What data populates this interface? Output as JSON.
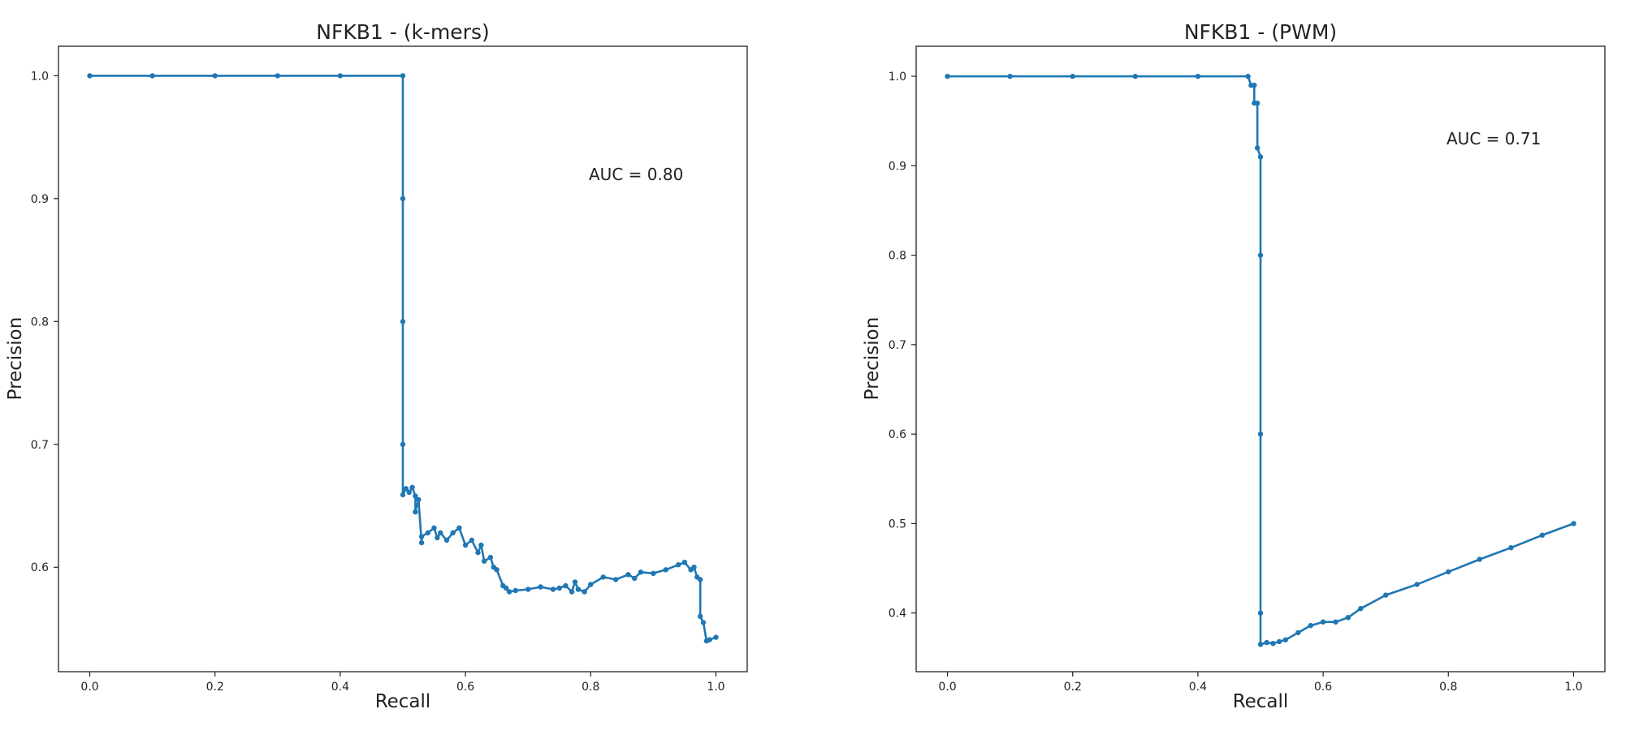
{
  "figure": {
    "panels": [
      {
        "title": "NFKB1 - (k-mers)",
        "annotation": "AUC = 0.80"
      },
      {
        "title": "NFKB1 - (PWM)",
        "annotation": "AUC = 0.71"
      }
    ]
  },
  "chart_data": [
    {
      "type": "line",
      "title": "NFKB1 - (k-mers)",
      "xlabel": "Recall",
      "ylabel": "Precision",
      "xlim": [
        -0.05,
        1.05
      ],
      "ylim": [
        0.515,
        1.024
      ],
      "xticks": [
        0.0,
        0.2,
        0.4,
        0.6,
        0.8,
        1.0
      ],
      "xtick_labels": [
        "0.0",
        "0.2",
        "0.4",
        "0.6",
        "0.8",
        "1.0"
      ],
      "yticks": [
        0.6,
        0.7,
        0.8,
        0.9,
        1.0
      ],
      "ytick_labels": [
        "0.6",
        "0.7",
        "0.8",
        "0.9",
        "1.0"
      ],
      "annotation": "AUC = 0.80",
      "grid": false,
      "color": "#1f77b4",
      "marker": "dot",
      "series": [
        {
          "x": [
            0.0,
            0.1,
            0.2,
            0.3,
            0.4,
            0.5,
            0.5,
            0.5,
            0.5,
            0.5,
            0.505,
            0.51,
            0.515,
            0.52,
            0.52,
            0.525,
            0.53,
            0.53,
            0.54,
            0.55,
            0.555,
            0.56,
            0.57,
            0.58,
            0.59,
            0.6,
            0.61,
            0.62,
            0.625,
            0.63,
            0.64,
            0.645,
            0.65,
            0.66,
            0.665,
            0.67,
            0.68,
            0.7,
            0.72,
            0.74,
            0.75,
            0.76,
            0.77,
            0.775,
            0.78,
            0.79,
            0.8,
            0.82,
            0.84,
            0.86,
            0.87,
            0.88,
            0.9,
            0.92,
            0.94,
            0.95,
            0.96,
            0.965,
            0.97,
            0.975,
            0.975,
            0.98,
            0.985,
            0.99,
            1.0
          ],
          "y": [
            1.0,
            1.0,
            1.0,
            1.0,
            1.0,
            1.0,
            0.9,
            0.8,
            0.7,
            0.659,
            0.664,
            0.661,
            0.665,
            0.658,
            0.645,
            0.655,
            0.62,
            0.625,
            0.628,
            0.632,
            0.624,
            0.628,
            0.622,
            0.628,
            0.632,
            0.618,
            0.622,
            0.612,
            0.618,
            0.605,
            0.608,
            0.6,
            0.598,
            0.585,
            0.583,
            0.58,
            0.581,
            0.582,
            0.584,
            0.582,
            0.583,
            0.585,
            0.58,
            0.588,
            0.582,
            0.58,
            0.586,
            0.592,
            0.59,
            0.594,
            0.591,
            0.596,
            0.595,
            0.598,
            0.602,
            0.604,
            0.598,
            0.6,
            0.592,
            0.59,
            0.56,
            0.555,
            0.54,
            0.541,
            0.543
          ]
        }
      ]
    },
    {
      "type": "line",
      "title": "NFKB1 - (PWM)",
      "xlabel": "Recall",
      "ylabel": "Precision",
      "xlim": [
        -0.05,
        1.05
      ],
      "ylim": [
        0.3344,
        1.0336
      ],
      "xticks": [
        0.0,
        0.2,
        0.4,
        0.6,
        0.8,
        1.0
      ],
      "xtick_labels": [
        "0.0",
        "0.2",
        "0.4",
        "0.6",
        "0.8",
        "1.0"
      ],
      "yticks": [
        0.4,
        0.5,
        0.6,
        0.7,
        0.8,
        0.9,
        1.0
      ],
      "ytick_labels": [
        "0.4",
        "0.5",
        "0.6",
        "0.7",
        "0.8",
        "0.9",
        "1.0"
      ],
      "annotation": "AUC = 0.71",
      "grid": false,
      "color": "#1f77b4",
      "marker": "dot",
      "series": [
        {
          "x": [
            0.0,
            0.1,
            0.2,
            0.3,
            0.4,
            0.48,
            0.485,
            0.49,
            0.49,
            0.495,
            0.495,
            0.5,
            0.5,
            0.5,
            0.5,
            0.5,
            0.51,
            0.52,
            0.53,
            0.54,
            0.56,
            0.58,
            0.6,
            0.62,
            0.64,
            0.66,
            0.7,
            0.75,
            0.8,
            0.85,
            0.9,
            0.95,
            1.0
          ],
          "y": [
            1.0,
            1.0,
            1.0,
            1.0,
            1.0,
            1.0,
            0.99,
            0.99,
            0.97,
            0.97,
            0.92,
            0.91,
            0.8,
            0.6,
            0.4,
            0.365,
            0.367,
            0.366,
            0.368,
            0.37,
            0.378,
            0.386,
            0.39,
            0.39,
            0.395,
            0.405,
            0.42,
            0.432,
            0.446,
            0.46,
            0.473,
            0.487,
            0.5
          ]
        }
      ]
    }
  ]
}
